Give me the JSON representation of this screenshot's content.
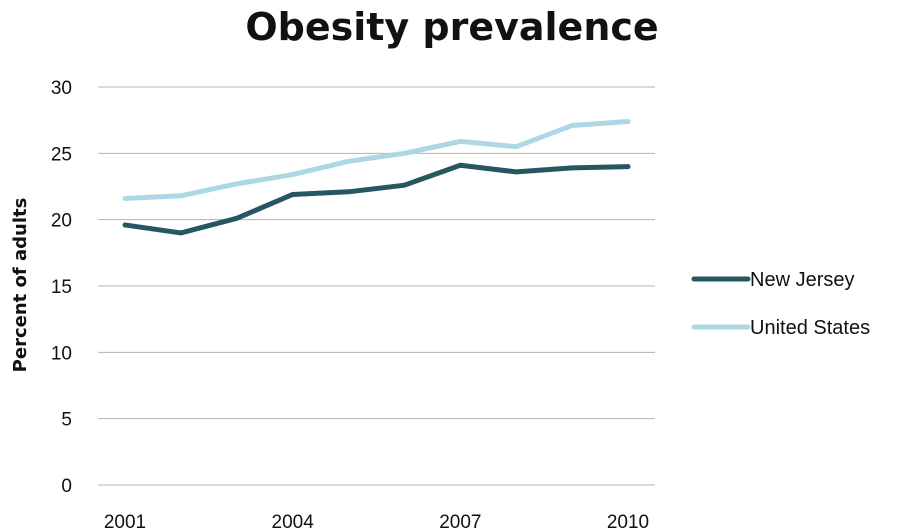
{
  "chart_data": {
    "type": "line",
    "title": "Obesity prevalence",
    "xlabel": "",
    "ylabel": "Percent of adults",
    "x": [
      2001,
      2002,
      2003,
      2004,
      2005,
      2006,
      2007,
      2008,
      2009,
      2010
    ],
    "x_tick_labels": [
      "2001",
      "2004",
      "2007",
      "2010"
    ],
    "x_tick_values": [
      2001,
      2004,
      2007,
      2010
    ],
    "y_ticks": [
      0,
      5,
      10,
      15,
      20,
      25,
      30
    ],
    "ylim": [
      0,
      30
    ],
    "grid": true,
    "legend_position": "right",
    "series": [
      {
        "name": "New Jersey",
        "color": "#255760",
        "values": [
          19.6,
          19.0,
          20.1,
          21.9,
          22.1,
          22.6,
          24.1,
          23.6,
          23.9,
          24.0
        ]
      },
      {
        "name": "United States",
        "color": "#add8e3",
        "values": [
          21.6,
          21.8,
          22.7,
          23.4,
          24.4,
          25.0,
          25.9,
          25.5,
          27.1,
          27.4
        ]
      }
    ]
  }
}
